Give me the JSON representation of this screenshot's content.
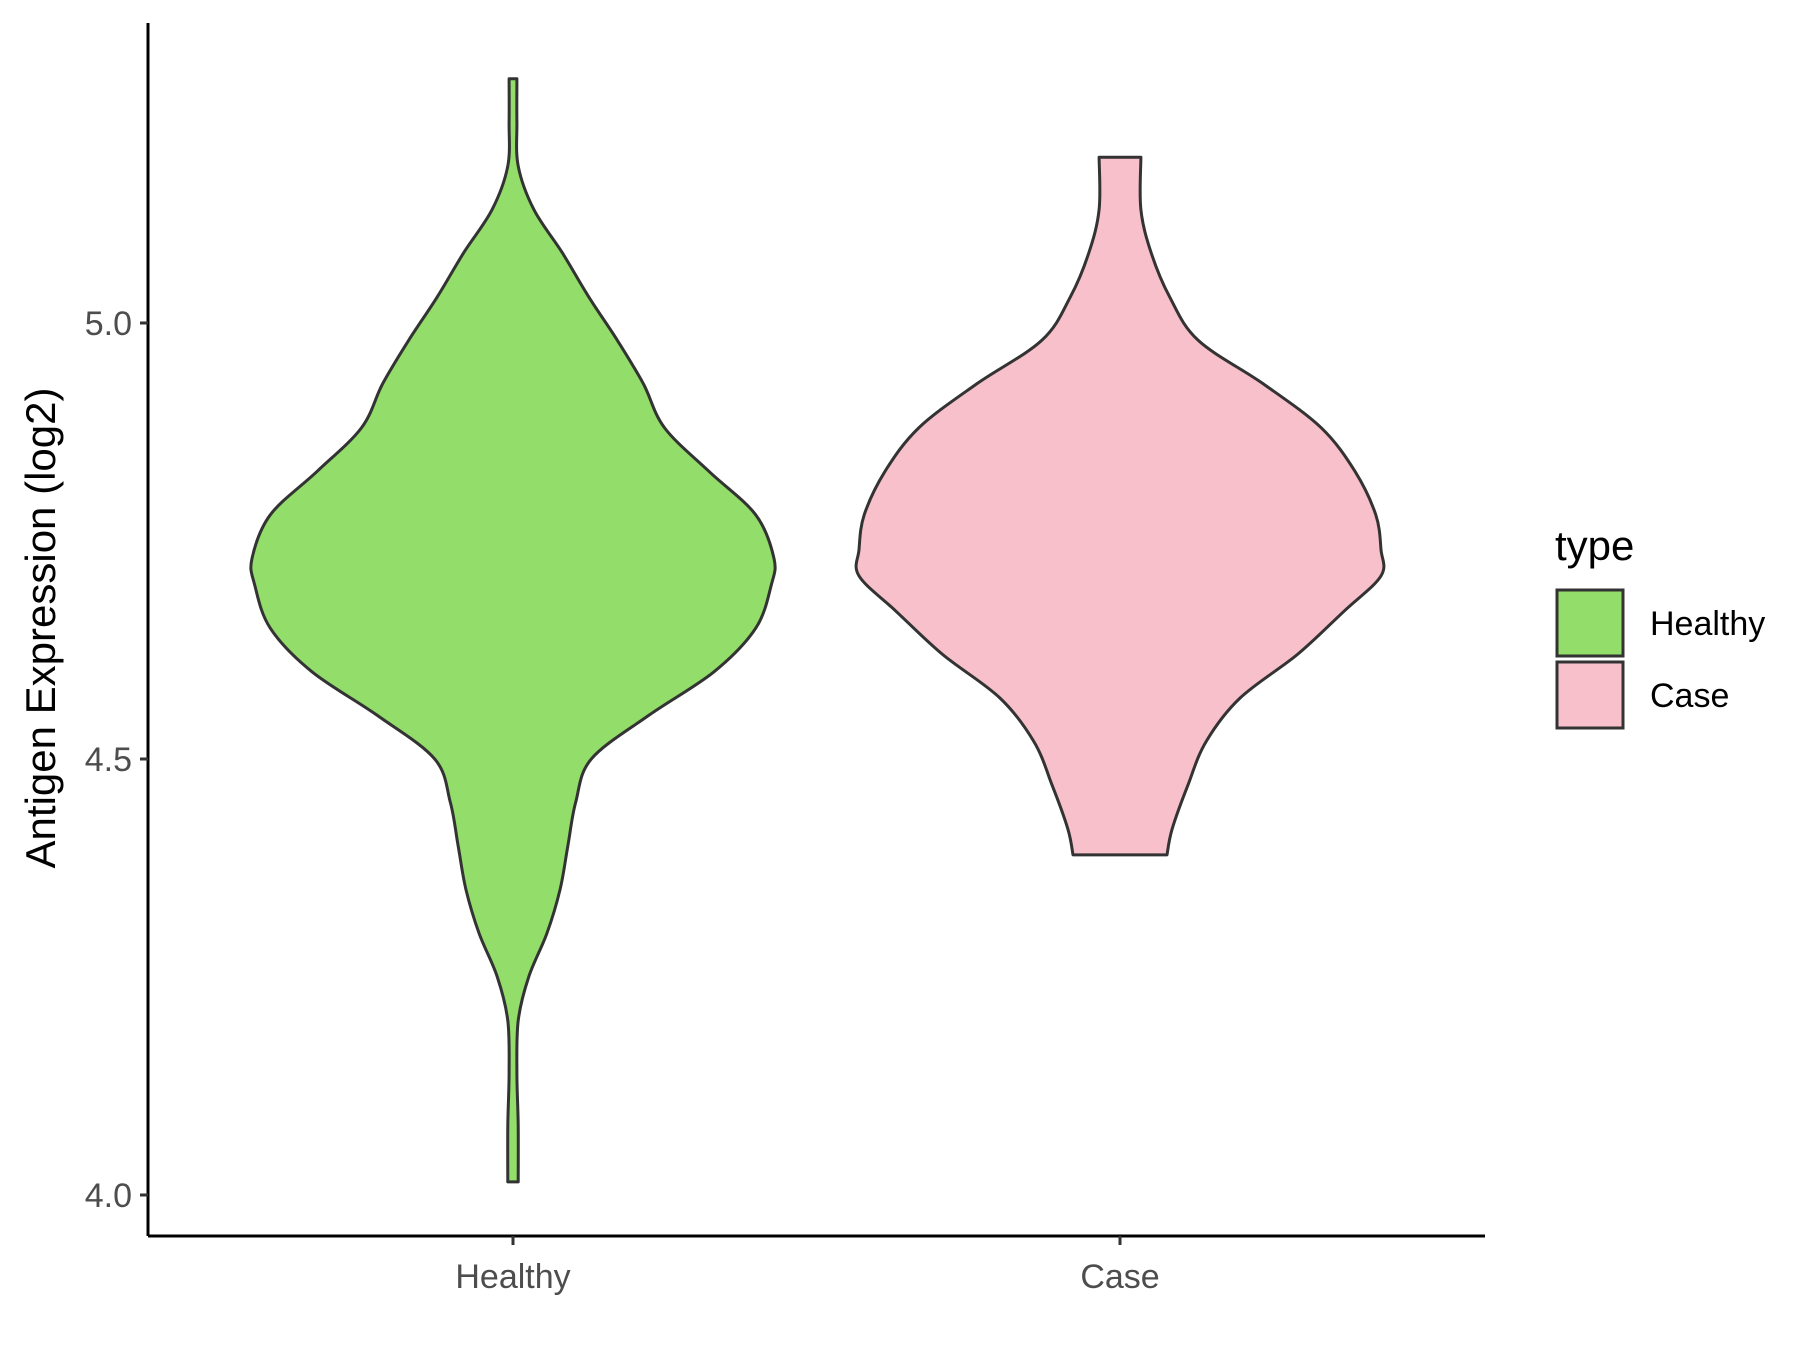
{
  "chart_data": {
    "type": "violin",
    "ylabel": "Antigen Expression (log2)",
    "ylim": [
      3.95,
      5.35
    ],
    "yticks": [
      "4.0",
      "4.5",
      "5.0"
    ],
    "categories": [
      "Healthy",
      "Case"
    ],
    "legend": {
      "title": "type",
      "position": "right",
      "entries": [
        "Healthy",
        "Case"
      ]
    },
    "colors": {
      "Healthy": "#93dd6a",
      "Case": "#f7c0cb",
      "outline": "#333333"
    },
    "grid": false,
    "series": [
      {
        "name": "Healthy",
        "min": 4.015,
        "max": 5.28,
        "density": [
          [
            4.015,
            0.02
          ],
          [
            4.08,
            0.02
          ],
          [
            4.14,
            0.015
          ],
          [
            4.2,
            0.02
          ],
          [
            4.25,
            0.06
          ],
          [
            4.3,
            0.13
          ],
          [
            4.35,
            0.18
          ],
          [
            4.4,
            0.21
          ],
          [
            4.45,
            0.24
          ],
          [
            4.5,
            0.3
          ],
          [
            4.55,
            0.52
          ],
          [
            4.6,
            0.77
          ],
          [
            4.65,
            0.93
          ],
          [
            4.7,
            0.99
          ],
          [
            4.73,
            1.0
          ],
          [
            4.78,
            0.93
          ],
          [
            4.83,
            0.75
          ],
          [
            4.88,
            0.58
          ],
          [
            4.93,
            0.5
          ],
          [
            4.98,
            0.4
          ],
          [
            5.03,
            0.29
          ],
          [
            5.08,
            0.19
          ],
          [
            5.13,
            0.08
          ],
          [
            5.18,
            0.02
          ],
          [
            5.23,
            0.015
          ],
          [
            5.28,
            0.015
          ]
        ]
      },
      {
        "name": "Case",
        "min": 4.39,
        "max": 5.19,
        "density": [
          [
            4.39,
            0.18
          ],
          [
            4.42,
            0.2
          ],
          [
            4.47,
            0.26
          ],
          [
            4.52,
            0.33
          ],
          [
            4.57,
            0.46
          ],
          [
            4.62,
            0.68
          ],
          [
            4.67,
            0.86
          ],
          [
            4.71,
            1.0
          ],
          [
            4.74,
            1.0
          ],
          [
            4.78,
            0.98
          ],
          [
            4.83,
            0.9
          ],
          [
            4.88,
            0.77
          ],
          [
            4.93,
            0.55
          ],
          [
            4.98,
            0.3
          ],
          [
            5.03,
            0.19
          ],
          [
            5.08,
            0.12
          ],
          [
            5.13,
            0.08
          ],
          [
            5.19,
            0.08
          ]
        ]
      }
    ]
  }
}
